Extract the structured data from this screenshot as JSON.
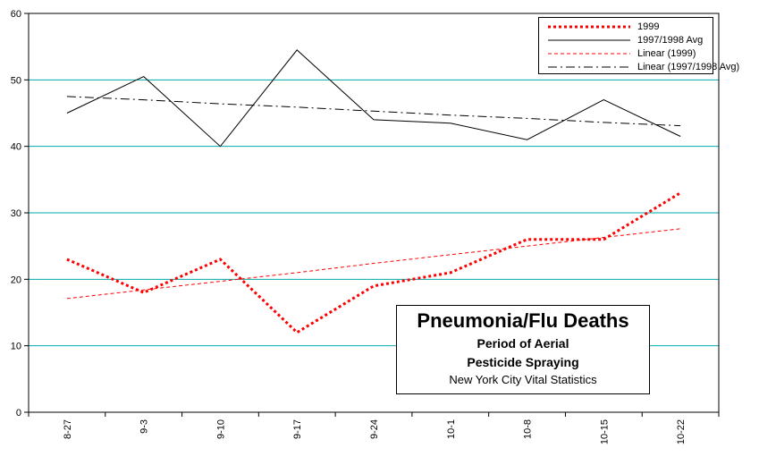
{
  "chart_data": {
    "type": "line",
    "title_lines": [
      "Pneumonia/Flu Deaths",
      "Period of Aerial",
      "Pesticide Spraying",
      "New York City Vital Statistics"
    ],
    "categories": [
      "8-27",
      "9-3",
      "9-10",
      "9-17",
      "9-24",
      "10-1",
      "10-8",
      "10-15",
      "10-22"
    ],
    "ylim": [
      0,
      60
    ],
    "yticks": [
      0,
      10,
      20,
      30,
      40,
      50,
      60
    ],
    "grid": "horizontal",
    "legend_position": "top-right",
    "series": [
      {
        "name": "1999",
        "values": [
          23,
          18,
          23,
          12,
          19,
          21,
          26,
          26,
          33
        ],
        "color": "#ff0000",
        "style": "dotted-thick"
      },
      {
        "name": "1997/1998 Avg",
        "values": [
          45,
          50.5,
          40,
          54.5,
          44,
          43.5,
          41,
          47,
          41.5
        ],
        "color": "#000000",
        "style": "solid"
      },
      {
        "name": "Linear (1999)",
        "values": [
          17.1,
          18.4,
          19.7,
          21.0,
          22.4,
          23.7,
          25.0,
          26.3,
          27.6
        ],
        "color": "#ff0000",
        "style": "dashed-thin"
      },
      {
        "name": "Linear (1997/1998 Avg)",
        "values": [
          47.5,
          47.0,
          46.4,
          45.9,
          45.3,
          44.7,
          44.2,
          43.6,
          43.1
        ],
        "color": "#000000",
        "style": "dash-dot"
      }
    ]
  }
}
